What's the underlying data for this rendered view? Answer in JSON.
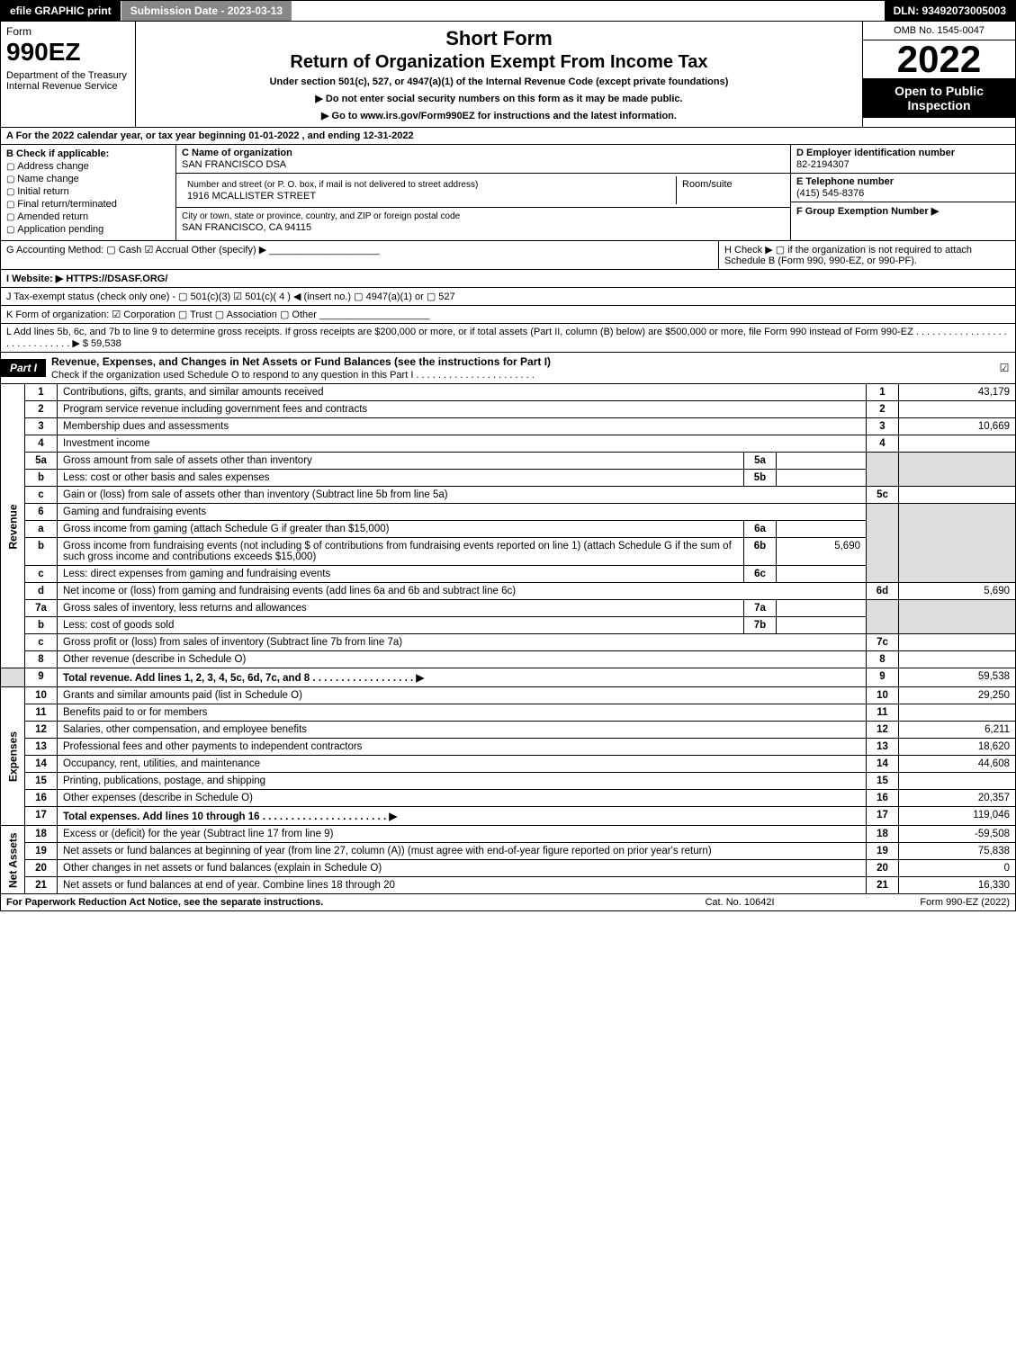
{
  "topbar": {
    "efile": "efile GRAPHIC print",
    "subdate": "Submission Date - 2023-03-13",
    "dln": "DLN: 93492073005003"
  },
  "header": {
    "form": "Form",
    "number": "990EZ",
    "dept": "Department of the Treasury\nInternal Revenue Service",
    "title1": "Short Form",
    "title2": "Return of Organization Exempt From Income Tax",
    "subtitle": "Under section 501(c), 527, or 4947(a)(1) of the Internal Revenue Code (except private foundations)",
    "note1": "▶ Do not enter social security numbers on this form as it may be made public.",
    "note2": "▶ Go to www.irs.gov/Form990EZ for instructions and the latest information.",
    "omb": "OMB No. 1545-0047",
    "year": "2022",
    "open": "Open to Public Inspection"
  },
  "rowA": "A  For the 2022 calendar year, or tax year beginning 01-01-2022 , and ending 12-31-2022",
  "colB": {
    "hdr": "B  Check if applicable:",
    "items": [
      "Address change",
      "Name change",
      "Initial return",
      "Final return/terminated",
      "Amended return",
      "Application pending"
    ]
  },
  "colC": {
    "name_lbl": "C Name of organization",
    "name": "SAN FRANCISCO DSA",
    "street_lbl": "Number and street (or P. O. box, if mail is not delivered to street address)",
    "street": "1916 MCALLISTER STREET",
    "suite_lbl": "Room/suite",
    "city_lbl": "City or town, state or province, country, and ZIP or foreign postal code",
    "city": "SAN FRANCISCO, CA  94115"
  },
  "colD": {
    "ein_lbl": "D Employer identification number",
    "ein": "82-2194307",
    "tel_lbl": "E Telephone number",
    "tel": "(415) 545-8376",
    "grp_lbl": "F Group Exemption Number   ▶"
  },
  "rowG": "G Accounting Method:   ▢ Cash   ☑ Accrual   Other (specify) ▶ ____________________",
  "rowH": "H   Check ▶  ▢  if the organization is not required to attach Schedule B (Form 990, 990-EZ, or 990-PF).",
  "rowI": "I Website: ▶ HTTPS://DSASF.ORG/",
  "rowJ": "J Tax-exempt status (check only one) -  ▢ 501(c)(3)  ☑ 501(c)( 4 ) ◀ (insert no.)  ▢ 4947(a)(1) or  ▢ 527",
  "rowK": "K Form of organization:   ☑ Corporation   ▢ Trust   ▢ Association   ▢ Other  ____________________",
  "rowL": "L Add lines 5b, 6c, and 7b to line 9 to determine gross receipts. If gross receipts are $200,000 or more, or if total assets (Part II, column (B) below) are $500,000 or more, file Form 990 instead of Form 990-EZ  .  .  .  .  .  .  .  .  .  .  .  .  .  .  .  .  .  .  .  .  .  .  .  .  .  .  .  .  .  ▶ $ 59,538",
  "part1": {
    "tag": "Part I",
    "title": "Revenue, Expenses, and Changes in Net Assets or Fund Balances (see the instructions for Part I)",
    "note": "Check if the organization used Schedule O to respond to any question in this Part I .  .  .  .  .  .  .  .  .  .  .  .  .  .  .  .  .  .  .  .  .  .",
    "check": "☑"
  },
  "sides": {
    "revenue": "Revenue",
    "expenses": "Expenses",
    "netassets": "Net Assets"
  },
  "lines": {
    "l1": {
      "n": "1",
      "t": "Contributions, gifts, grants, and similar amounts received",
      "r": "1",
      "a": "43,179"
    },
    "l2": {
      "n": "2",
      "t": "Program service revenue including government fees and contracts",
      "r": "2",
      "a": ""
    },
    "l3": {
      "n": "3",
      "t": "Membership dues and assessments",
      "r": "3",
      "a": "10,669"
    },
    "l4": {
      "n": "4",
      "t": "Investment income",
      "r": "4",
      "a": ""
    },
    "l5a": {
      "n": "5a",
      "t": "Gross amount from sale of assets other than inventory",
      "s": "5a",
      "sa": ""
    },
    "l5b": {
      "n": "b",
      "t": "Less: cost or other basis and sales expenses",
      "s": "5b",
      "sa": ""
    },
    "l5c": {
      "n": "c",
      "t": "Gain or (loss) from sale of assets other than inventory (Subtract line 5b from line 5a)",
      "r": "5c",
      "a": ""
    },
    "l6": {
      "n": "6",
      "t": "Gaming and fundraising events"
    },
    "l6a": {
      "n": "a",
      "t": "Gross income from gaming (attach Schedule G if greater than $15,000)",
      "s": "6a",
      "sa": ""
    },
    "l6b": {
      "n": "b",
      "t": "Gross income from fundraising events (not including $                      of contributions from fundraising events reported on line 1) (attach Schedule G if the sum of such gross income and contributions exceeds $15,000)",
      "s": "6b",
      "sa": "5,690"
    },
    "l6c": {
      "n": "c",
      "t": "Less: direct expenses from gaming and fundraising events",
      "s": "6c",
      "sa": ""
    },
    "l6d": {
      "n": "d",
      "t": "Net income or (loss) from gaming and fundraising events (add lines 6a and 6b and subtract line 6c)",
      "r": "6d",
      "a": "5,690"
    },
    "l7a": {
      "n": "7a",
      "t": "Gross sales of inventory, less returns and allowances",
      "s": "7a",
      "sa": ""
    },
    "l7b": {
      "n": "b",
      "t": "Less: cost of goods sold",
      "s": "7b",
      "sa": ""
    },
    "l7c": {
      "n": "c",
      "t": "Gross profit or (loss) from sales of inventory (Subtract line 7b from line 7a)",
      "r": "7c",
      "a": ""
    },
    "l8": {
      "n": "8",
      "t": "Other revenue (describe in Schedule O)",
      "r": "8",
      "a": ""
    },
    "l9": {
      "n": "9",
      "t": "Total revenue. Add lines 1, 2, 3, 4, 5c, 6d, 7c, and 8   .  .  .  .  .  .  .  .  .  .  .  .  .  .  .  .  .  . ▶",
      "r": "9",
      "a": "59,538",
      "bold": true
    },
    "l10": {
      "n": "10",
      "t": "Grants and similar amounts paid (list in Schedule O)",
      "r": "10",
      "a": "29,250"
    },
    "l11": {
      "n": "11",
      "t": "Benefits paid to or for members",
      "r": "11",
      "a": ""
    },
    "l12": {
      "n": "12",
      "t": "Salaries, other compensation, and employee benefits",
      "r": "12",
      "a": "6,211"
    },
    "l13": {
      "n": "13",
      "t": "Professional fees and other payments to independent contractors",
      "r": "13",
      "a": "18,620"
    },
    "l14": {
      "n": "14",
      "t": "Occupancy, rent, utilities, and maintenance",
      "r": "14",
      "a": "44,608"
    },
    "l15": {
      "n": "15",
      "t": "Printing, publications, postage, and shipping",
      "r": "15",
      "a": ""
    },
    "l16": {
      "n": "16",
      "t": "Other expenses (describe in Schedule O)",
      "r": "16",
      "a": "20,357"
    },
    "l17": {
      "n": "17",
      "t": "Total expenses. Add lines 10 through 16      .  .  .  .  .  .  .  .  .  .  .  .  .  .  .  .  .  .  .  .  .  . ▶",
      "r": "17",
      "a": "119,046",
      "bold": true
    },
    "l18": {
      "n": "18",
      "t": "Excess or (deficit) for the year (Subtract line 17 from line 9)",
      "r": "18",
      "a": "-59,508"
    },
    "l19": {
      "n": "19",
      "t": "Net assets or fund balances at beginning of year (from line 27, column (A)) (must agree with end-of-year figure reported on prior year's return)",
      "r": "19",
      "a": "75,838"
    },
    "l20": {
      "n": "20",
      "t": "Other changes in net assets or fund balances (explain in Schedule O)",
      "r": "20",
      "a": "0"
    },
    "l21": {
      "n": "21",
      "t": "Net assets or fund balances at end of year. Combine lines 18 through 20",
      "r": "21",
      "a": "16,330"
    }
  },
  "footer": {
    "left": "For Paperwork Reduction Act Notice, see the separate instructions.",
    "mid": "Cat. No. 10642I",
    "right": "Form 990-EZ (2022)"
  }
}
